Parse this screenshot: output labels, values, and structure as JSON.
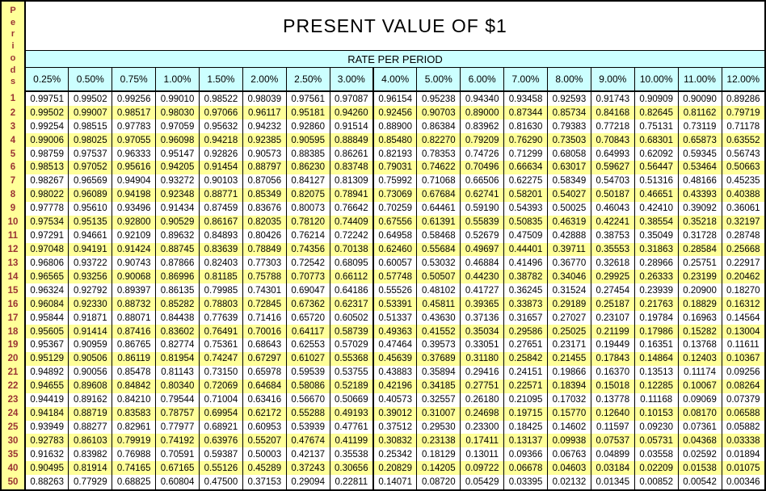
{
  "title": "PRESENT VALUE OF $1",
  "rate_band_label": "RATE PER PERIOD",
  "periods_column_label": "Periods",
  "colors": {
    "header_cyan": "#CCFFFF",
    "row_yellow": "#FFFF99",
    "period_text_maroon": "#993333",
    "border_black": "#000000",
    "background_white": "#FFFFFF"
  },
  "chart_data": {
    "type": "table",
    "title": "PRESENT VALUE OF $1",
    "column_group_label": "RATE PER PERIOD",
    "row_axis_label": "Periods",
    "thick_divider_after_column": "3.00%",
    "rate_headers": [
      "0.25%",
      "0.50%",
      "0.75%",
      "1.00%",
      "1.50%",
      "2.00%",
      "2.50%",
      "3.00%",
      "4.00%",
      "5.00%",
      "6.00%",
      "7.00%",
      "8.00%",
      "9.00%",
      "10.00%",
      "11.00%",
      "12.00%"
    ],
    "rows": [
      {
        "period": "1",
        "values": [
          "0.99751",
          "0.99502",
          "0.99256",
          "0.99010",
          "0.98522",
          "0.98039",
          "0.97561",
          "0.97087",
          "0.96154",
          "0.95238",
          "0.94340",
          "0.93458",
          "0.92593",
          "0.91743",
          "0.90909",
          "0.90090",
          "0.89286"
        ]
      },
      {
        "period": "2",
        "values": [
          "0.99502",
          "0.99007",
          "0.98517",
          "0.98030",
          "0.97066",
          "0.96117",
          "0.95181",
          "0.94260",
          "0.92456",
          "0.90703",
          "0.89000",
          "0.87344",
          "0.85734",
          "0.84168",
          "0.82645",
          "0.81162",
          "0.79719"
        ]
      },
      {
        "period": "3",
        "values": [
          "0.99254",
          "0.98515",
          "0.97783",
          "0.97059",
          "0.95632",
          "0.94232",
          "0.92860",
          "0.91514",
          "0.88900",
          "0.86384",
          "0.83962",
          "0.81630",
          "0.79383",
          "0.77218",
          "0.75131",
          "0.73119",
          "0.71178"
        ]
      },
      {
        "period": "4",
        "values": [
          "0.99006",
          "0.98025",
          "0.97055",
          "0.96098",
          "0.94218",
          "0.92385",
          "0.90595",
          "0.88849",
          "0.85480",
          "0.82270",
          "0.79209",
          "0.76290",
          "0.73503",
          "0.70843",
          "0.68301",
          "0.65873",
          "0.63552"
        ]
      },
      {
        "period": "5",
        "values": [
          "0.98759",
          "0.97537",
          "0.96333",
          "0.95147",
          "0.92826",
          "0.90573",
          "0.88385",
          "0.86261",
          "0.82193",
          "0.78353",
          "0.74726",
          "0.71299",
          "0.68058",
          "0.64993",
          "0.62092",
          "0.59345",
          "0.56743"
        ]
      },
      {
        "period": "6",
        "values": [
          "0.98513",
          "0.97052",
          "0.95616",
          "0.94205",
          "0.91454",
          "0.88797",
          "0.86230",
          "0.83748",
          "0.79031",
          "0.74622",
          "0.70496",
          "0.66634",
          "0.63017",
          "0.59627",
          "0.56447",
          "0.53464",
          "0.50663"
        ]
      },
      {
        "period": "7",
        "values": [
          "0.98267",
          "0.96569",
          "0.94904",
          "0.93272",
          "0.90103",
          "0.87056",
          "0.84127",
          "0.81309",
          "0.75992",
          "0.71068",
          "0.66506",
          "0.62275",
          "0.58349",
          "0.54703",
          "0.51316",
          "0.48166",
          "0.45235"
        ]
      },
      {
        "period": "8",
        "values": [
          "0.98022",
          "0.96089",
          "0.94198",
          "0.92348",
          "0.88771",
          "0.85349",
          "0.82075",
          "0.78941",
          "0.73069",
          "0.67684",
          "0.62741",
          "0.58201",
          "0.54027",
          "0.50187",
          "0.46651",
          "0.43393",
          "0.40388"
        ]
      },
      {
        "period": "9",
        "values": [
          "0.97778",
          "0.95610",
          "0.93496",
          "0.91434",
          "0.87459",
          "0.83676",
          "0.80073",
          "0.76642",
          "0.70259",
          "0.64461",
          "0.59190",
          "0.54393",
          "0.50025",
          "0.46043",
          "0.42410",
          "0.39092",
          "0.36061"
        ]
      },
      {
        "period": "10",
        "values": [
          "0.97534",
          "0.95135",
          "0.92800",
          "0.90529",
          "0.86167",
          "0.82035",
          "0.78120",
          "0.74409",
          "0.67556",
          "0.61391",
          "0.55839",
          "0.50835",
          "0.46319",
          "0.42241",
          "0.38554",
          "0.35218",
          "0.32197"
        ]
      },
      {
        "period": "11",
        "values": [
          "0.97291",
          "0.94661",
          "0.92109",
          "0.89632",
          "0.84893",
          "0.80426",
          "0.76214",
          "0.72242",
          "0.64958",
          "0.58468",
          "0.52679",
          "0.47509",
          "0.42888",
          "0.38753",
          "0.35049",
          "0.31728",
          "0.28748"
        ]
      },
      {
        "period": "12",
        "values": [
          "0.97048",
          "0.94191",
          "0.91424",
          "0.88745",
          "0.83639",
          "0.78849",
          "0.74356",
          "0.70138",
          "0.62460",
          "0.55684",
          "0.49697",
          "0.44401",
          "0.39711",
          "0.35553",
          "0.31863",
          "0.28584",
          "0.25668"
        ]
      },
      {
        "period": "13",
        "values": [
          "0.96806",
          "0.93722",
          "0.90743",
          "0.87866",
          "0.82403",
          "0.77303",
          "0.72542",
          "0.68095",
          "0.60057",
          "0.53032",
          "0.46884",
          "0.41496",
          "0.36770",
          "0.32618",
          "0.28966",
          "0.25751",
          "0.22917"
        ]
      },
      {
        "period": "14",
        "values": [
          "0.96565",
          "0.93256",
          "0.90068",
          "0.86996",
          "0.81185",
          "0.75788",
          "0.70773",
          "0.66112",
          "0.57748",
          "0.50507",
          "0.44230",
          "0.38782",
          "0.34046",
          "0.29925",
          "0.26333",
          "0.23199",
          "0.20462"
        ]
      },
      {
        "period": "15",
        "values": [
          "0.96324",
          "0.92792",
          "0.89397",
          "0.86135",
          "0.79985",
          "0.74301",
          "0.69047",
          "0.64186",
          "0.55526",
          "0.48102",
          "0.41727",
          "0.36245",
          "0.31524",
          "0.27454",
          "0.23939",
          "0.20900",
          "0.18270"
        ]
      },
      {
        "period": "16",
        "values": [
          "0.96084",
          "0.92330",
          "0.88732",
          "0.85282",
          "0.78803",
          "0.72845",
          "0.67362",
          "0.62317",
          "0.53391",
          "0.45811",
          "0.39365",
          "0.33873",
          "0.29189",
          "0.25187",
          "0.21763",
          "0.18829",
          "0.16312"
        ]
      },
      {
        "period": "17",
        "values": [
          "0.95844",
          "0.91871",
          "0.88071",
          "0.84438",
          "0.77639",
          "0.71416",
          "0.65720",
          "0.60502",
          "0.51337",
          "0.43630",
          "0.37136",
          "0.31657",
          "0.27027",
          "0.23107",
          "0.19784",
          "0.16963",
          "0.14564"
        ]
      },
      {
        "period": "18",
        "values": [
          "0.95605",
          "0.91414",
          "0.87416",
          "0.83602",
          "0.76491",
          "0.70016",
          "0.64117",
          "0.58739",
          "0.49363",
          "0.41552",
          "0.35034",
          "0.29586",
          "0.25025",
          "0.21199",
          "0.17986",
          "0.15282",
          "0.13004"
        ]
      },
      {
        "period": "19",
        "values": [
          "0.95367",
          "0.90959",
          "0.86765",
          "0.82774",
          "0.75361",
          "0.68643",
          "0.62553",
          "0.57029",
          "0.47464",
          "0.39573",
          "0.33051",
          "0.27651",
          "0.23171",
          "0.19449",
          "0.16351",
          "0.13768",
          "0.11611"
        ]
      },
      {
        "period": "20",
        "values": [
          "0.95129",
          "0.90506",
          "0.86119",
          "0.81954",
          "0.74247",
          "0.67297",
          "0.61027",
          "0.55368",
          "0.45639",
          "0.37689",
          "0.31180",
          "0.25842",
          "0.21455",
          "0.17843",
          "0.14864",
          "0.12403",
          "0.10367"
        ]
      },
      {
        "period": "21",
        "values": [
          "0.94892",
          "0.90056",
          "0.85478",
          "0.81143",
          "0.73150",
          "0.65978",
          "0.59539",
          "0.53755",
          "0.43883",
          "0.35894",
          "0.29416",
          "0.24151",
          "0.19866",
          "0.16370",
          "0.13513",
          "0.11174",
          "0.09256"
        ]
      },
      {
        "period": "22",
        "values": [
          "0.94655",
          "0.89608",
          "0.84842",
          "0.80340",
          "0.72069",
          "0.64684",
          "0.58086",
          "0.52189",
          "0.42196",
          "0.34185",
          "0.27751",
          "0.22571",
          "0.18394",
          "0.15018",
          "0.12285",
          "0.10067",
          "0.08264"
        ]
      },
      {
        "period": "23",
        "values": [
          "0.94419",
          "0.89162",
          "0.84210",
          "0.79544",
          "0.71004",
          "0.63416",
          "0.56670",
          "0.50669",
          "0.40573",
          "0.32557",
          "0.26180",
          "0.21095",
          "0.17032",
          "0.13778",
          "0.11168",
          "0.09069",
          "0.07379"
        ]
      },
      {
        "period": "24",
        "values": [
          "0.94184",
          "0.88719",
          "0.83583",
          "0.78757",
          "0.69954",
          "0.62172",
          "0.55288",
          "0.49193",
          "0.39012",
          "0.31007",
          "0.24698",
          "0.19715",
          "0.15770",
          "0.12640",
          "0.10153",
          "0.08170",
          "0.06588"
        ]
      },
      {
        "period": "25",
        "values": [
          "0.93949",
          "0.88277",
          "0.82961",
          "0.77977",
          "0.68921",
          "0.60953",
          "0.53939",
          "0.47761",
          "0.37512",
          "0.29530",
          "0.23300",
          "0.18425",
          "0.14602",
          "0.11597",
          "0.09230",
          "0.07361",
          "0.05882"
        ]
      },
      {
        "period": "30",
        "values": [
          "0.92783",
          "0.86103",
          "0.79919",
          "0.74192",
          "0.63976",
          "0.55207",
          "0.47674",
          "0.41199",
          "0.30832",
          "0.23138",
          "0.17411",
          "0.13137",
          "0.09938",
          "0.07537",
          "0.05731",
          "0.04368",
          "0.03338"
        ]
      },
      {
        "period": "35",
        "values": [
          "0.91632",
          "0.83982",
          "0.76988",
          "0.70591",
          "0.59387",
          "0.50003",
          "0.42137",
          "0.35538",
          "0.25342",
          "0.18129",
          "0.13011",
          "0.09366",
          "0.06763",
          "0.04899",
          "0.03558",
          "0.02592",
          "0.01894"
        ]
      },
      {
        "period": "40",
        "values": [
          "0.90495",
          "0.81914",
          "0.74165",
          "0.67165",
          "0.55126",
          "0.45289",
          "0.37243",
          "0.30656",
          "0.20829",
          "0.14205",
          "0.09722",
          "0.06678",
          "0.04603",
          "0.03184",
          "0.02209",
          "0.01538",
          "0.01075"
        ]
      },
      {
        "period": "50",
        "values": [
          "0.88263",
          "0.77929",
          "0.68825",
          "0.60804",
          "0.47500",
          "0.37153",
          "0.29094",
          "0.22811",
          "0.14071",
          "0.08720",
          "0.05429",
          "0.03395",
          "0.02132",
          "0.01345",
          "0.00852",
          "0.00542",
          "0.00346"
        ]
      }
    ]
  }
}
